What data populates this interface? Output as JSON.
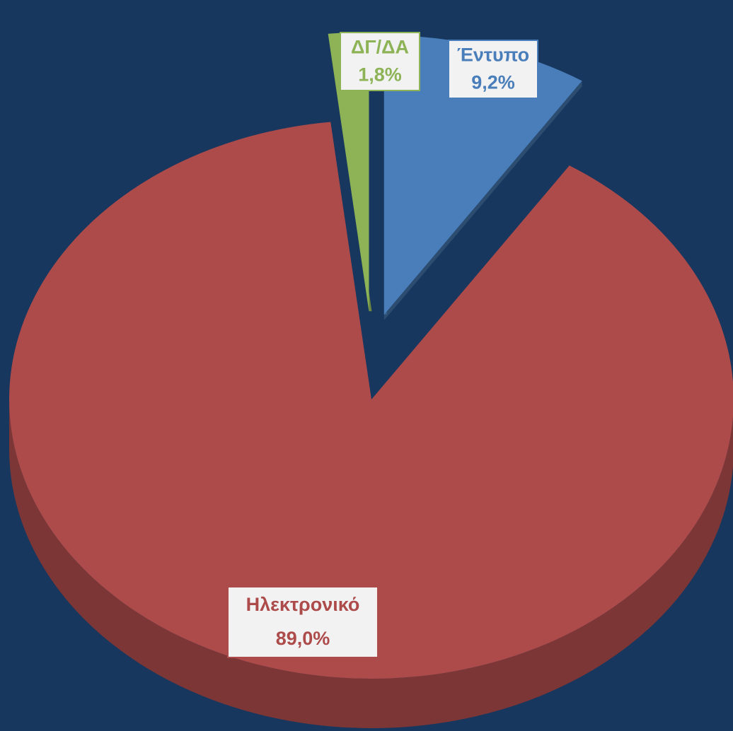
{
  "chart_data": {
    "type": "pie",
    "categories": [
      "Έντυπο",
      "Ηλεκτρονικό",
      "ΔΓ/ΔΑ"
    ],
    "values": [
      9.2,
      89.0,
      1.8
    ],
    "value_labels": [
      "9,2%",
      "89,0%",
      "1,8%"
    ],
    "colors": [
      "#4a7ebb",
      "#ad4b4b",
      "#8db356"
    ],
    "background": "#17375e"
  }
}
